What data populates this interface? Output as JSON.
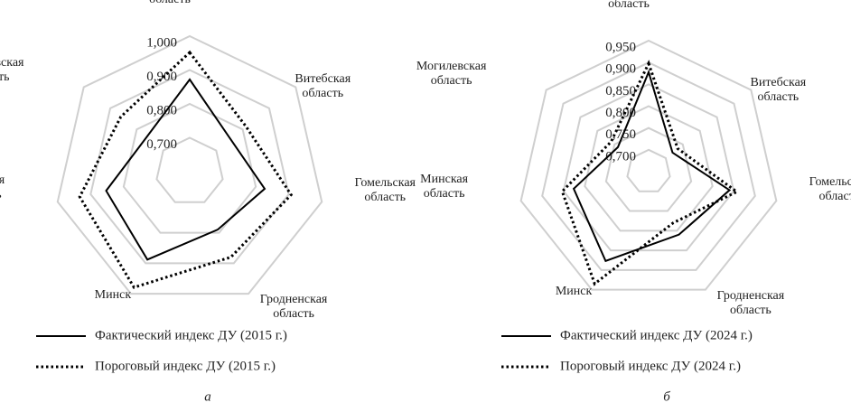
{
  "chart_data": [
    {
      "type": "radar",
      "categories": [
        "Брестская область",
        "Витебская область",
        "Гомельская область",
        "Гродненская область",
        "Минск",
        "Минская область",
        "Могилевская область"
      ],
      "ylim": [
        0.6,
        1.0
      ],
      "yticks": [
        {
          "value": 0.7,
          "label": "0,700"
        },
        {
          "value": 0.8,
          "label": "0,800"
        },
        {
          "value": 0.9,
          "label": "0,900"
        },
        {
          "value": 1.0,
          "label": "1,000"
        }
      ],
      "grid": true,
      "series": [
        {
          "name": "Фактический индекс ДУ (2015 г.)",
          "color": "#000000",
          "line_style": "solid",
          "values": [
            0.872,
            0.754,
            0.827,
            0.79,
            0.888,
            0.853,
            0.763
          ]
        },
        {
          "name": "Пороговый индекс ДУ (2015 г.)",
          "color": "#000000",
          "line_style": "dotted",
          "values": [
            0.952,
            0.813,
            0.907,
            0.88,
            0.979,
            0.933,
            0.86
          ]
        }
      ],
      "caption": "а"
    },
    {
      "type": "radar",
      "categories": [
        "Брестская область",
        "Витебская область",
        "Гомельская область",
        "Гродненская область",
        "Минск",
        "Минская область",
        "Могилевская область"
      ],
      "ylim": [
        0.65,
        0.95
      ],
      "yticks": [
        {
          "value": 0.7,
          "label": "0,700"
        },
        {
          "value": 0.75,
          "label": "0,750"
        },
        {
          "value": 0.8,
          "label": "0,800"
        },
        {
          "value": 0.85,
          "label": "0,850"
        },
        {
          "value": 0.9,
          "label": "0,900"
        },
        {
          "value": 0.95,
          "label": "0,950"
        }
      ],
      "grid": true,
      "series": [
        {
          "name": "Фактический индекс ДУ (2024 г.)",
          "color": "#000000",
          "line_style": "solid",
          "values": [
            0.878,
            0.72,
            0.84,
            0.81,
            0.877,
            0.826,
            0.74
          ]
        },
        {
          "name": "Пороговый индекс ДУ (2024 г.)",
          "color": "#000000",
          "line_style": "dotted",
          "values": [
            0.898,
            0.735,
            0.857,
            0.78,
            0.935,
            0.853,
            0.76
          ]
        }
      ],
      "caption": "б"
    }
  ]
}
